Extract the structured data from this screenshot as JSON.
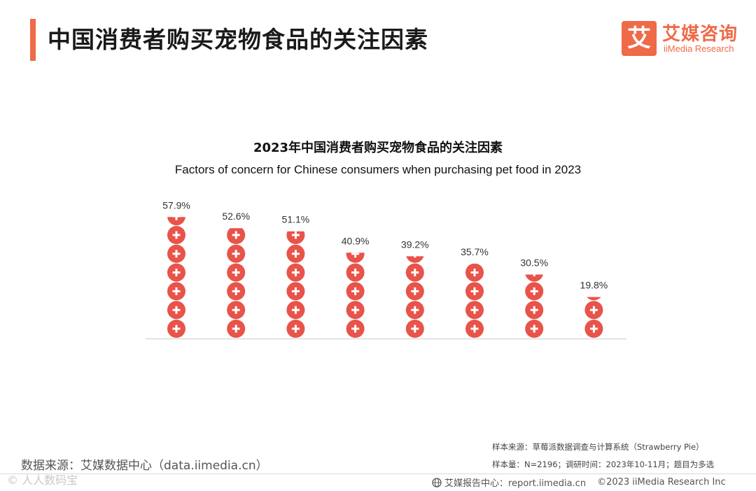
{
  "header": {
    "title": "中国消费者购买宠物食品的关注因素"
  },
  "logo": {
    "mark": "艾",
    "cn": "艾媒咨询",
    "en": "iiMedia Research"
  },
  "chart_data": {
    "type": "bar",
    "title": "2023年中国消费者购买宠物食品的关注因素",
    "subtitle": "Factors of concern for Chinese consumers when purchasing pet food in 2023",
    "categories": [
      "",
      "",
      "",
      "",
      "",
      "",
      "",
      ""
    ],
    "values": [
      57.9,
      52.6,
      51.1,
      40.9,
      39.2,
      35.7,
      30.5,
      19.8
    ],
    "value_labels": [
      "57.9%",
      "52.6%",
      "51.1%",
      "40.9%",
      "39.2%",
      "35.7%",
      "30.5%",
      "19.8%"
    ],
    "unit": "%",
    "style": "stacked circle pictogram",
    "xlabel": "",
    "ylabel": "",
    "color": "#e8534a"
  },
  "footer": {
    "sample_source": "样本来源：草莓派数据调查与计算系统（Strawberry Pie）",
    "sample_size": "样本量：N=2196；调研时间：2023年10-11月；题目为多选",
    "data_source": "数据来源：艾媒数据中心（data.iimedia.cn）",
    "report_center": "艾媒报告中心：report.iimedia.cn",
    "copyright": "©2023  iiMedia Research  Inc",
    "watermark": "© 人人数码宝"
  }
}
